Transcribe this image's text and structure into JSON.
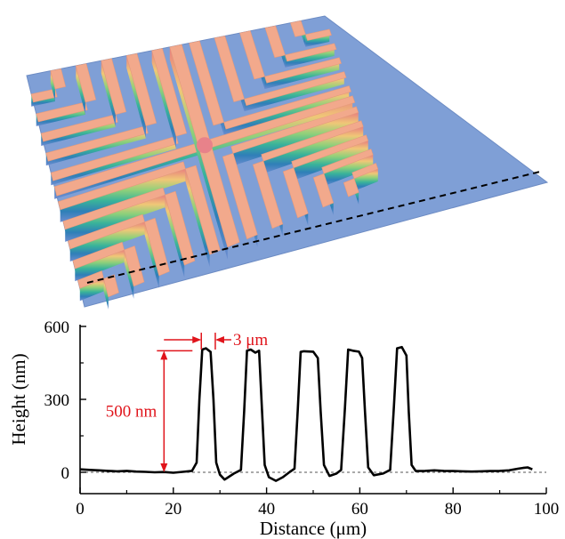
{
  "figure": {
    "surface_image": "3D AFM topography render of cross-shaped nested L-ridge pattern with dashed profile line",
    "colors": {
      "substrate": "#7f9fd6",
      "ridge_top": "#f2a98c",
      "ridge_top_center": "#e8828a",
      "profile_line": "#000000",
      "annotation": "#e0141b",
      "baseline": "#555555"
    }
  },
  "chart_data": {
    "type": "line",
    "xlabel": "Distance (μm)",
    "ylabel": "Height (nm)",
    "xlim": [
      0,
      100
    ],
    "ylim": [
      -40,
      600
    ],
    "x_ticks": [
      "0",
      "20",
      "40",
      "60",
      "80",
      "100"
    ],
    "y_ticks": [
      "0",
      "300",
      "600"
    ],
    "grid": false,
    "baseline_y": 0,
    "series": [
      {
        "x": [
          0,
          2,
          4,
          6,
          8,
          10,
          12,
          14,
          16,
          18,
          20,
          22,
          24,
          25,
          25.6,
          26.2,
          27,
          28,
          28.6,
          29.2,
          30,
          31,
          33,
          34.5,
          35.2,
          35.8,
          36.6,
          37.6,
          38.4,
          39,
          39.6,
          40.5,
          42,
          43.5,
          45,
          46,
          46.7,
          47.3,
          48,
          50,
          51,
          51.6,
          52.3,
          53.5,
          55,
          56,
          56.8,
          57.5,
          58.5,
          59.8,
          60.5,
          61.1,
          61.8,
          63,
          65,
          66.5,
          67.3,
          68,
          69,
          70,
          70.5,
          71.1,
          72,
          74,
          76,
          78,
          80,
          82,
          84,
          86,
          88,
          90,
          92,
          94,
          95,
          96,
          97
        ],
        "y": [
          12,
          10,
          8,
          6,
          4,
          6,
          3,
          2,
          0,
          1,
          -2,
          2,
          6,
          40,
          300,
          505,
          510,
          495,
          300,
          40,
          -10,
          -30,
          -5,
          10,
          250,
          500,
          505,
          492,
          500,
          260,
          30,
          -20,
          -35,
          -20,
          2,
          15,
          260,
          495,
          498,
          496,
          470,
          250,
          30,
          -15,
          -5,
          10,
          260,
          505,
          500,
          496,
          470,
          250,
          20,
          -12,
          -5,
          10,
          270,
          510,
          515,
          480,
          250,
          30,
          5,
          6,
          8,
          6,
          5,
          4,
          3,
          4,
          5,
          6,
          8,
          15,
          18,
          20,
          12
        ]
      }
    ],
    "annotations": [
      {
        "text": "3 μm",
        "type": "width-arrow",
        "x_range": [
          26,
          29
        ],
        "y": 545
      },
      {
        "text": "500 nm",
        "type": "height-arrow",
        "x": 18,
        "y_range": [
          0,
          500
        ]
      }
    ]
  }
}
